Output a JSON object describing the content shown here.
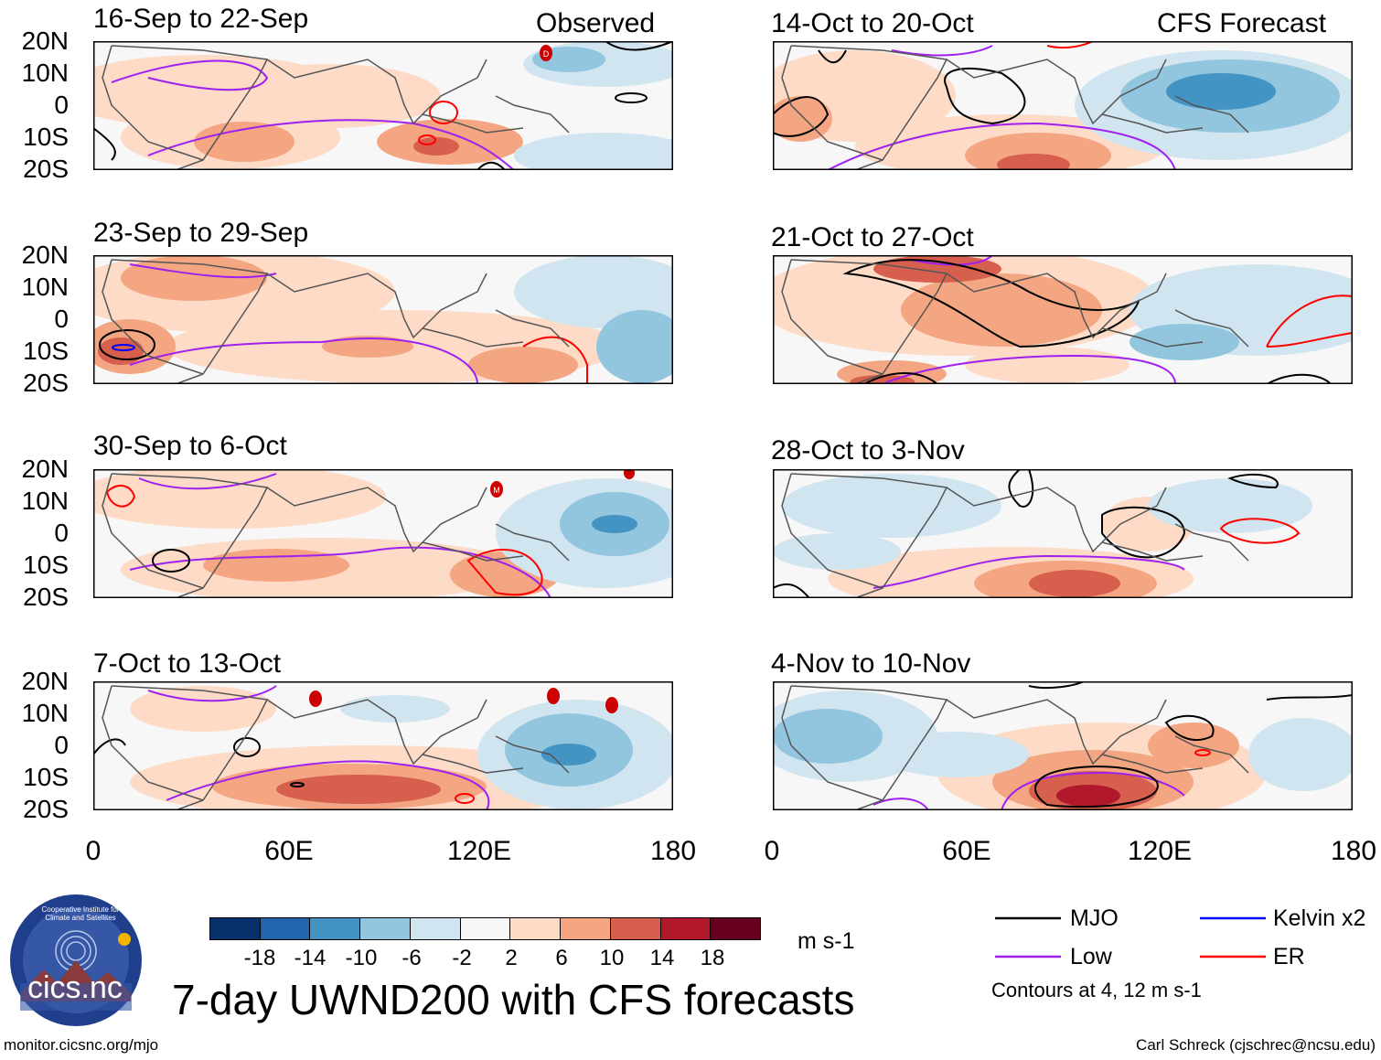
{
  "labels": {
    "observed": "Observed",
    "forecast": "CFS Forecast"
  },
  "panels_left": [
    {
      "title": "16-Sep to 22-Sep"
    },
    {
      "title": "23-Sep to 29-Sep"
    },
    {
      "title": "30-Sep to 6-Oct"
    },
    {
      "title": "7-Oct to 13-Oct"
    }
  ],
  "panels_right": [
    {
      "title": "14-Oct to 20-Oct"
    },
    {
      "title": "21-Oct to 27-Oct"
    },
    {
      "title": "28-Oct to 3-Nov"
    },
    {
      "title": "4-Nov to 10-Nov"
    }
  ],
  "y_ticks": [
    "20N",
    "10N",
    "0",
    "10S",
    "20S"
  ],
  "x_ticks": [
    "0",
    "60E",
    "120E",
    "180"
  ],
  "colorbar": {
    "colors": [
      "#08306b",
      "#2166ac",
      "#4393c3",
      "#92c5de",
      "#d1e5f0",
      "#f7f7f7",
      "#fddbc7",
      "#f4a582",
      "#d6604d",
      "#b2182b",
      "#67001f"
    ],
    "ticks": [
      "-18",
      "-14",
      "-10",
      "-6",
      "-2",
      "2",
      "6",
      "10",
      "14",
      "18"
    ],
    "units": "m s-1"
  },
  "legend": {
    "items": [
      {
        "label": "MJO",
        "color": "#000000"
      },
      {
        "label": "Low",
        "color": "#a020f0"
      },
      {
        "label": "Kelvin x2",
        "color": "#0000ff"
      },
      {
        "label": "ER",
        "color": "#ff0000"
      }
    ],
    "note": "Contours at 4, 12 m s-1"
  },
  "main_title": "7-day UWND200 with CFS forecasts",
  "logo_text": "cics.nc",
  "logo_ring_text": "Cooperative Institute for Climate and Satellites",
  "footer_left": "monitor.cicsnc.org/mjo",
  "footer_right": "Carl Schreck (cjschrec@ncsu.edu)"
}
